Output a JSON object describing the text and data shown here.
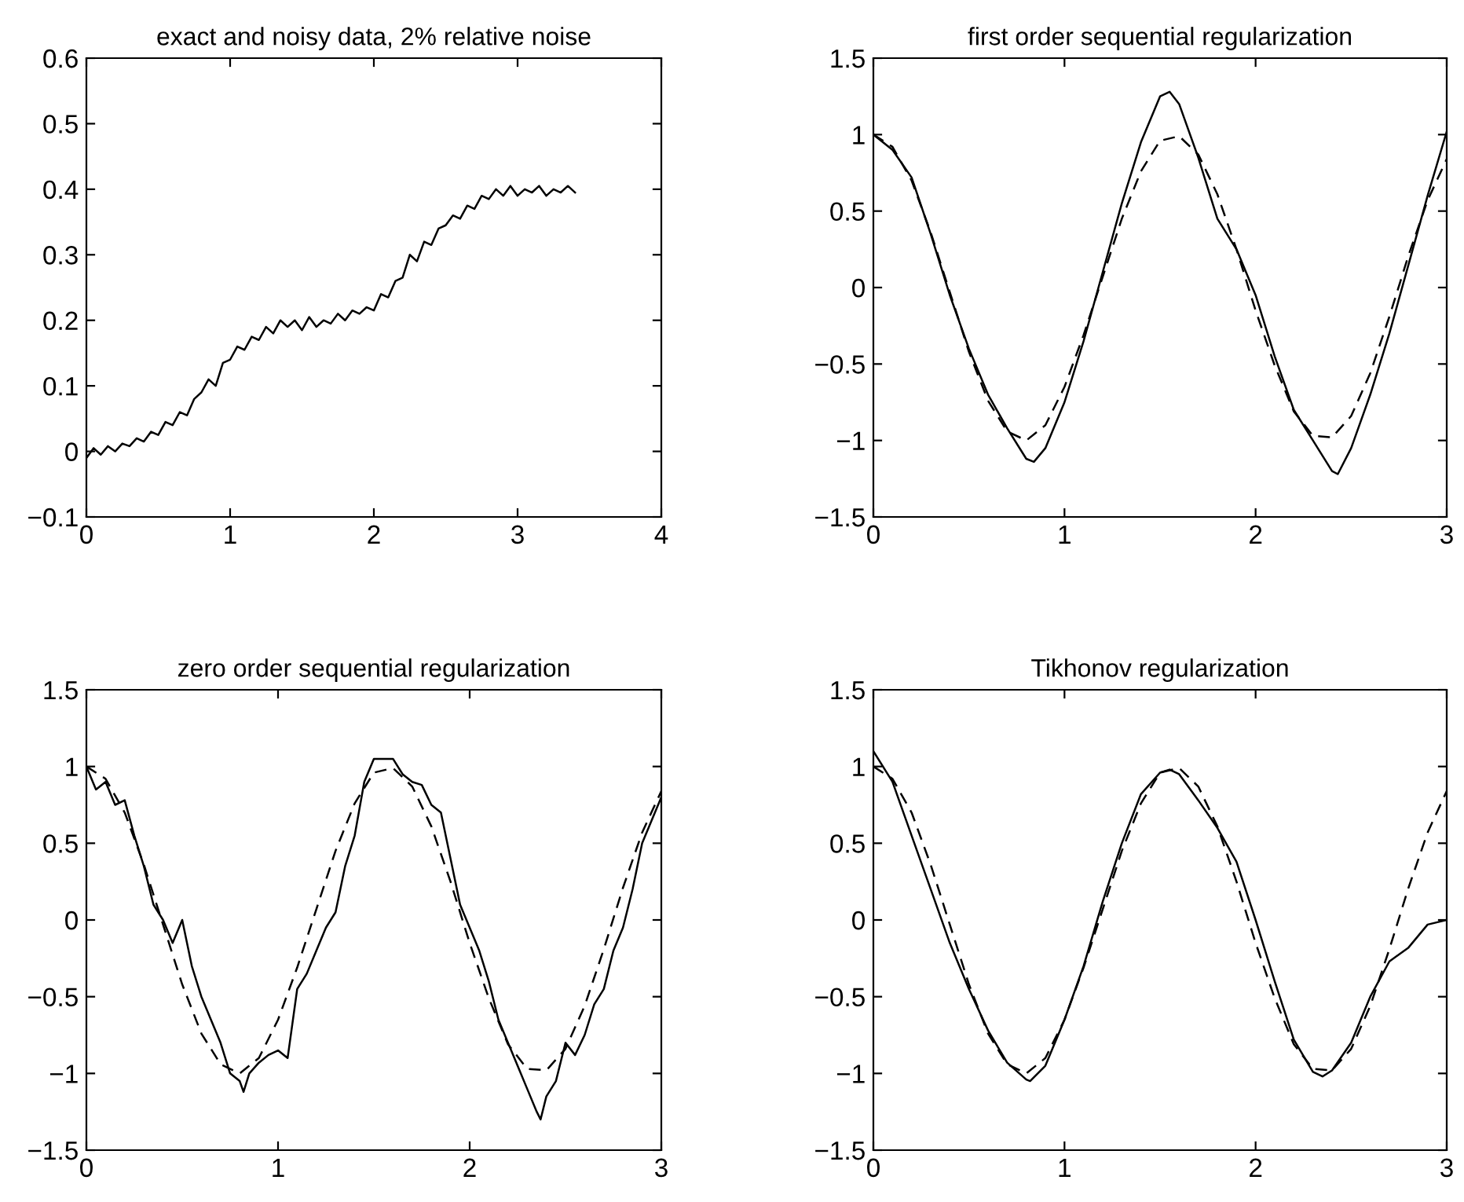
{
  "chart_data": [
    {
      "type": "line",
      "title": "exact and noisy data, 2% relative noise",
      "xlim": [
        0,
        4
      ],
      "xticks": [
        0,
        1,
        2,
        3,
        4
      ],
      "ylim": [
        -0.1,
        0.6
      ],
      "yticks": [
        -0.1,
        0,
        0.1,
        0.2,
        0.3,
        0.4,
        0.5,
        0.6
      ],
      "grid": false,
      "legend": false,
      "series": [
        {
          "color": "#000000",
          "line_style": "solid",
          "x": [
            0,
            0.05,
            0.1,
            0.15,
            0.2,
            0.25,
            0.3,
            0.35,
            0.4,
            0.45,
            0.5,
            0.55,
            0.6,
            0.65,
            0.7,
            0.75,
            0.8,
            0.85,
            0.9,
            0.95,
            1.0,
            1.05,
            1.1,
            1.15,
            1.2,
            1.25,
            1.3,
            1.35,
            1.4,
            1.45,
            1.5,
            1.55,
            1.6,
            1.65,
            1.7,
            1.75,
            1.8,
            1.85,
            1.9,
            1.95,
            2.0,
            2.05,
            2.1,
            2.15,
            2.2,
            2.25,
            2.3,
            2.35,
            2.4,
            2.45,
            2.5,
            2.55,
            2.6,
            2.65,
            2.7,
            2.75,
            2.8,
            2.85,
            2.9,
            2.95,
            3.0,
            3.05,
            3.1,
            3.15,
            3.2,
            3.25,
            3.3,
            3.35,
            3.4
          ],
          "values": [
            -0.01,
            0.005,
            -0.005,
            0.008,
            0.0,
            0.012,
            0.008,
            0.02,
            0.015,
            0.03,
            0.025,
            0.045,
            0.04,
            0.06,
            0.055,
            0.08,
            0.09,
            0.11,
            0.1,
            0.135,
            0.14,
            0.16,
            0.155,
            0.175,
            0.17,
            0.19,
            0.18,
            0.2,
            0.19,
            0.2,
            0.185,
            0.205,
            0.19,
            0.2,
            0.195,
            0.21,
            0.2,
            0.215,
            0.21,
            0.22,
            0.215,
            0.24,
            0.235,
            0.26,
            0.265,
            0.3,
            0.29,
            0.32,
            0.315,
            0.34,
            0.345,
            0.36,
            0.355,
            0.375,
            0.37,
            0.39,
            0.385,
            0.4,
            0.39,
            0.405,
            0.39,
            0.4,
            0.395,
            0.405,
            0.39,
            0.4,
            0.395,
            0.405,
            0.395
          ]
        }
      ]
    },
    {
      "type": "line",
      "title": "first order sequential regularization",
      "xlim": [
        0,
        3
      ],
      "xticks": [
        0,
        1,
        2,
        3
      ],
      "ylim": [
        -1.5,
        1.5
      ],
      "yticks": [
        -1.5,
        -1,
        -0.5,
        0,
        0.5,
        1,
        1.5
      ],
      "grid": false,
      "legend": false,
      "series": [
        {
          "color": "#000000",
          "line_style": "solid",
          "x": [
            0,
            0.1,
            0.2,
            0.3,
            0.4,
            0.5,
            0.6,
            0.7,
            0.8,
            0.84,
            0.9,
            1.0,
            1.1,
            1.2,
            1.3,
            1.4,
            1.5,
            1.55,
            1.6,
            1.7,
            1.8,
            1.9,
            2.0,
            2.1,
            2.2,
            2.3,
            2.4,
            2.43,
            2.5,
            2.6,
            2.7,
            2.8,
            2.9,
            3.0
          ],
          "values": [
            1.0,
            0.9,
            0.72,
            0.35,
            -0.05,
            -0.4,
            -0.7,
            -0.92,
            -1.12,
            -1.14,
            -1.05,
            -0.75,
            -0.35,
            0.1,
            0.55,
            0.95,
            1.25,
            1.28,
            1.2,
            0.85,
            0.45,
            0.25,
            -0.05,
            -0.45,
            -0.8,
            -1.0,
            -1.2,
            -1.22,
            -1.05,
            -0.7,
            -0.3,
            0.15,
            0.6,
            1.02
          ]
        },
        {
          "color": "#000000",
          "line_style": "dashed",
          "x": [
            0,
            0.1,
            0.2,
            0.3,
            0.4,
            0.5,
            0.6,
            0.7,
            0.8,
            0.9,
            1.0,
            1.1,
            1.2,
            1.3,
            1.4,
            1.5,
            1.6,
            1.7,
            1.8,
            1.9,
            2.0,
            2.1,
            2.2,
            2.3,
            2.4,
            2.5,
            2.6,
            2.7,
            2.8,
            2.9,
            3.0
          ],
          "values": [
            1.0,
            0.92,
            0.7,
            0.36,
            -0.03,
            -0.42,
            -0.74,
            -0.94,
            -1.0,
            -0.9,
            -0.65,
            -0.31,
            0.07,
            0.45,
            0.76,
            0.96,
            0.99,
            0.87,
            0.61,
            0.25,
            -0.15,
            -0.51,
            -0.81,
            -0.97,
            -0.98,
            -0.84,
            -0.56,
            -0.19,
            0.21,
            0.57,
            0.84
          ]
        }
      ]
    },
    {
      "type": "line",
      "title": "zero order sequential regularization",
      "xlim": [
        0,
        3
      ],
      "xticks": [
        0,
        1,
        2,
        3
      ],
      "ylim": [
        -1.5,
        1.5
      ],
      "yticks": [
        -1.5,
        -1,
        -0.5,
        0,
        0.5,
        1,
        1.5
      ],
      "grid": false,
      "legend": false,
      "series": [
        {
          "color": "#000000",
          "line_style": "solid",
          "x": [
            0,
            0.05,
            0.1,
            0.15,
            0.2,
            0.25,
            0.3,
            0.35,
            0.4,
            0.45,
            0.5,
            0.55,
            0.6,
            0.65,
            0.7,
            0.75,
            0.8,
            0.82,
            0.85,
            0.9,
            0.95,
            1.0,
            1.05,
            1.1,
            1.15,
            1.2,
            1.25,
            1.3,
            1.35,
            1.4,
            1.45,
            1.5,
            1.55,
            1.6,
            1.65,
            1.7,
            1.75,
            1.8,
            1.85,
            1.9,
            1.95,
            2.0,
            2.05,
            2.1,
            2.15,
            2.2,
            2.25,
            2.3,
            2.35,
            2.37,
            2.4,
            2.45,
            2.5,
            2.55,
            2.6,
            2.65,
            2.7,
            2.75,
            2.8,
            2.85,
            2.9,
            2.95,
            3.0
          ],
          "values": [
            1.0,
            0.85,
            0.9,
            0.75,
            0.78,
            0.55,
            0.35,
            0.1,
            0.0,
            -0.15,
            0.0,
            -0.3,
            -0.5,
            -0.65,
            -0.8,
            -1.0,
            -1.05,
            -1.12,
            -1.0,
            -0.93,
            -0.88,
            -0.85,
            -0.9,
            -0.45,
            -0.35,
            -0.2,
            -0.05,
            0.05,
            0.35,
            0.55,
            0.9,
            1.05,
            1.05,
            1.05,
            0.95,
            0.9,
            0.88,
            0.75,
            0.7,
            0.4,
            0.1,
            -0.05,
            -0.2,
            -0.4,
            -0.65,
            -0.8,
            -0.95,
            -1.1,
            -1.25,
            -1.3,
            -1.15,
            -1.05,
            -0.8,
            -0.88,
            -0.75,
            -0.55,
            -0.45,
            -0.2,
            -0.05,
            0.2,
            0.5,
            0.65,
            0.8
          ]
        },
        {
          "color": "#000000",
          "line_style": "dashed",
          "x": [
            0,
            0.1,
            0.2,
            0.3,
            0.4,
            0.5,
            0.6,
            0.7,
            0.8,
            0.9,
            1.0,
            1.1,
            1.2,
            1.3,
            1.4,
            1.5,
            1.6,
            1.7,
            1.8,
            1.9,
            2.0,
            2.1,
            2.2,
            2.3,
            2.4,
            2.5,
            2.6,
            2.7,
            2.8,
            2.9,
            3.0
          ],
          "values": [
            1.0,
            0.92,
            0.7,
            0.36,
            -0.03,
            -0.42,
            -0.74,
            -0.94,
            -1.0,
            -0.9,
            -0.65,
            -0.31,
            0.07,
            0.45,
            0.76,
            0.96,
            0.99,
            0.87,
            0.61,
            0.25,
            -0.15,
            -0.51,
            -0.81,
            -0.97,
            -0.98,
            -0.84,
            -0.56,
            -0.19,
            0.21,
            0.57,
            0.84
          ]
        }
      ]
    },
    {
      "type": "line",
      "title": "Tikhonov regularization",
      "xlim": [
        0,
        3
      ],
      "xticks": [
        0,
        1,
        2,
        3
      ],
      "ylim": [
        -1.5,
        1.5
      ],
      "yticks": [
        -1.5,
        -1,
        -0.5,
        0,
        0.5,
        1,
        1.5
      ],
      "grid": false,
      "legend": false,
      "series": [
        {
          "color": "#000000",
          "line_style": "solid",
          "x": [
            0,
            0.1,
            0.2,
            0.3,
            0.4,
            0.5,
            0.6,
            0.7,
            0.8,
            0.82,
            0.9,
            1.0,
            1.1,
            1.2,
            1.3,
            1.4,
            1.5,
            1.55,
            1.6,
            1.7,
            1.8,
            1.9,
            2.0,
            2.1,
            2.2,
            2.3,
            2.35,
            2.4,
            2.5,
            2.6,
            2.7,
            2.8,
            2.9,
            3.0
          ],
          "values": [
            1.1,
            0.9,
            0.55,
            0.2,
            -0.15,
            -0.45,
            -0.72,
            -0.93,
            -1.04,
            -1.05,
            -0.95,
            -0.65,
            -0.3,
            0.12,
            0.5,
            0.82,
            0.96,
            0.98,
            0.95,
            0.78,
            0.6,
            0.38,
            0.0,
            -0.4,
            -0.78,
            -0.99,
            -1.02,
            -0.98,
            -0.8,
            -0.5,
            -0.27,
            -0.18,
            -0.03,
            0.0
          ]
        },
        {
          "color": "#000000",
          "line_style": "dashed",
          "x": [
            0,
            0.1,
            0.2,
            0.3,
            0.4,
            0.5,
            0.6,
            0.7,
            0.8,
            0.9,
            1.0,
            1.1,
            1.2,
            1.3,
            1.4,
            1.5,
            1.6,
            1.7,
            1.8,
            1.9,
            2.0,
            2.1,
            2.2,
            2.3,
            2.4,
            2.5,
            2.6,
            2.7,
            2.8,
            2.9,
            3.0
          ],
          "values": [
            1.0,
            0.92,
            0.7,
            0.36,
            -0.03,
            -0.42,
            -0.74,
            -0.94,
            -1.0,
            -0.9,
            -0.65,
            -0.31,
            0.07,
            0.45,
            0.76,
            0.96,
            0.99,
            0.87,
            0.61,
            0.25,
            -0.15,
            -0.51,
            -0.81,
            -0.97,
            -0.98,
            -0.84,
            -0.56,
            -0.19,
            0.21,
            0.57,
            0.84
          ]
        }
      ]
    }
  ]
}
